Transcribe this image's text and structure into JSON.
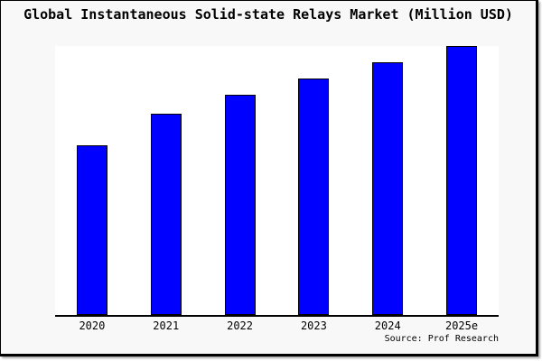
{
  "header": {
    "title": "Global Instantaneous Solid-state Relays Market (Million USD)"
  },
  "footer": {
    "source_label": "Source: Prof Research"
  },
  "colors": {
    "bar_fill": "#0000ff",
    "bar_border": "#000000",
    "plot_background": "#ffffff",
    "page_background": "#f8f8f8",
    "axis_line": "#000000"
  },
  "chart_data": {
    "type": "bar",
    "title": "Global Instantaneous Solid-state Relays Market (Million USD)",
    "categories": [
      "2020",
      "2021",
      "2022",
      "2023",
      "2024",
      "2025e"
    ],
    "values": [
      63,
      75,
      82,
      88,
      94,
      100
    ],
    "value_note": "y-axis is unlabeled; values are relative bar heights estimated from pixels, scaled so 2025e = 100",
    "xlabel": "",
    "ylabel": "",
    "ylim": [
      0,
      100
    ],
    "yticks": [],
    "grid": false,
    "legend": null,
    "bar_color": "#0000ff",
    "bar_border_color": "#000000"
  }
}
